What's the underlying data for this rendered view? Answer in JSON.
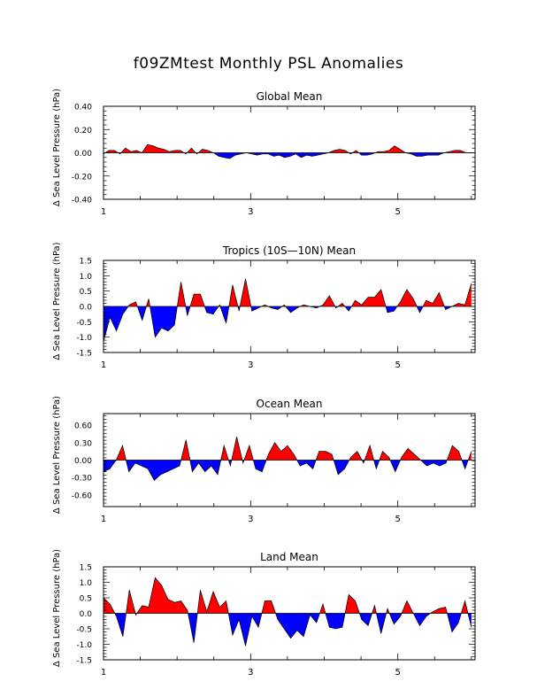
{
  "page_title": "f09ZMtest Monthly PSL Anomalies",
  "colors": {
    "positive": "#ff0000",
    "negative": "#0000ff",
    "axis": "#000000"
  },
  "chart_data": [
    {
      "type": "area",
      "title": "Global Mean",
      "ylabel": "Δ Sea Level Pressure (hPa)",
      "xlabel": "",
      "xlim": [
        1,
        6.05
      ],
      "ylim": [
        -0.4,
        0.4
      ],
      "xticks": [
        1,
        3,
        5
      ],
      "xtick_labels": [
        "1",
        "3",
        "5"
      ],
      "yticks": [
        -0.4,
        -0.2,
        0.0,
        0.2,
        0.4
      ],
      "ytick_labels": [
        "-0.40",
        "-0.20",
        "0.00",
        "0.20",
        "0.40"
      ],
      "values": [
        -0.01,
        0.02,
        0.02,
        -0.01,
        0.04,
        0.01,
        0.02,
        0.0,
        0.07,
        0.06,
        0.04,
        0.03,
        0.01,
        0.02,
        0.02,
        -0.01,
        0.04,
        -0.01,
        0.03,
        0.02,
        0.0,
        -0.03,
        -0.04,
        -0.05,
        -0.02,
        -0.01,
        0.0,
        -0.01,
        -0.02,
        -0.01,
        -0.01,
        -0.03,
        -0.02,
        -0.04,
        -0.03,
        -0.01,
        -0.04,
        -0.02,
        -0.03,
        -0.02,
        -0.01,
        0.0,
        0.02,
        0.03,
        0.02,
        -0.01,
        0.02,
        -0.02,
        -0.02,
        -0.01,
        0.01,
        0.01,
        0.02,
        0.06,
        0.03,
        0.0,
        -0.01,
        -0.03,
        -0.03,
        -0.02,
        -0.02,
        -0.02,
        0.0,
        0.01,
        0.02,
        0.02,
        0.0,
        0.0
      ]
    },
    {
      "type": "area",
      "title": "Tropics (10S—10N) Mean",
      "ylabel": "Δ Sea Level Pressure (hPa)",
      "xlabel": "",
      "xlim": [
        1,
        6.05
      ],
      "ylim": [
        -1.5,
        1.5
      ],
      "xticks": [
        1,
        3,
        5
      ],
      "xtick_labels": [
        "1",
        "3",
        "5"
      ],
      "yticks": [
        -1.5,
        -1.0,
        -0.5,
        0.0,
        0.5,
        1.0,
        1.5
      ],
      "ytick_labels": [
        "-1.5",
        "-1.0",
        "-0.5",
        "0.0",
        "0.5",
        "1.0",
        "1.5"
      ],
      "values": [
        -1.15,
        -0.35,
        -0.8,
        -0.25,
        0.05,
        0.15,
        -0.45,
        0.25,
        -1.0,
        -0.7,
        -0.8,
        -0.6,
        0.8,
        -0.3,
        0.4,
        0.4,
        -0.2,
        -0.25,
        0.05,
        -0.55,
        0.7,
        -0.15,
        0.9,
        -0.15,
        -0.05,
        0.05,
        -0.05,
        -0.1,
        0.05,
        -0.2,
        -0.05,
        0.05,
        0.0,
        -0.05,
        0.05,
        0.35,
        -0.05,
        0.1,
        -0.15,
        0.2,
        0.05,
        0.3,
        0.3,
        0.55,
        -0.2,
        -0.15,
        0.15,
        0.55,
        0.25,
        -0.2,
        0.2,
        0.1,
        0.45,
        -0.1,
        0.0,
        0.1,
        0.05,
        0.75
      ]
    },
    {
      "type": "area",
      "title": "Ocean Mean",
      "ylabel": "Δ Sea Level Pressure (hPa)",
      "xlabel": "",
      "xlim": [
        1,
        6.05
      ],
      "ylim": [
        -0.8,
        0.8
      ],
      "xticks": [
        1,
        3,
        5
      ],
      "xtick_labels": [
        "1",
        "3",
        "5"
      ],
      "yticks": [
        -0.6,
        -0.3,
        0.0,
        0.3,
        0.6
      ],
      "ytick_labels": [
        "-0.60",
        "-0.30",
        "0.00",
        "0.30",
        "0.60"
      ],
      "values": [
        -0.2,
        -0.15,
        0.0,
        0.25,
        -0.2,
        -0.05,
        -0.1,
        -0.15,
        -0.35,
        -0.25,
        -0.2,
        -0.15,
        -0.1,
        0.35,
        -0.2,
        -0.05,
        -0.2,
        -0.1,
        -0.25,
        0.25,
        -0.1,
        0.4,
        -0.05,
        0.25,
        -0.15,
        -0.2,
        0.1,
        0.3,
        0.15,
        0.25,
        0.1,
        -0.1,
        -0.05,
        -0.15,
        0.15,
        0.15,
        0.1,
        -0.25,
        -0.15,
        0.05,
        0.15,
        -0.05,
        0.25,
        -0.15,
        0.15,
        0.05,
        -0.2,
        0.05,
        0.2,
        0.1,
        0.0,
        -0.1,
        -0.05,
        -0.1,
        -0.05,
        0.25,
        0.15,
        -0.15,
        0.15
      ]
    },
    {
      "type": "area",
      "title": "Land Mean",
      "ylabel": "Δ Sea Level Pressure (hPa)",
      "xlabel": "",
      "xlim": [
        1,
        6.05
      ],
      "ylim": [
        -1.5,
        1.5
      ],
      "xticks": [
        1,
        3,
        5
      ],
      "xtick_labels": [
        "1",
        "3",
        "5"
      ],
      "yticks": [
        -1.5,
        -1.0,
        -0.5,
        0.0,
        0.5,
        1.0,
        1.5
      ],
      "ytick_labels": [
        "-1.5",
        "-1.0",
        "-0.5",
        "0.0",
        "0.5",
        "1.0",
        "1.5"
      ],
      "values": [
        0.5,
        0.3,
        -0.1,
        -0.75,
        0.75,
        -0.05,
        0.25,
        0.2,
        1.15,
        0.9,
        0.45,
        0.35,
        0.4,
        0.1,
        -0.95,
        0.75,
        0.05,
        0.7,
        0.2,
        0.4,
        -0.7,
        -0.2,
        -1.05,
        -0.1,
        -0.45,
        0.4,
        0.4,
        -0.2,
        -0.5,
        -0.8,
        -0.55,
        -0.75,
        -0.05,
        -0.3,
        0.3,
        -0.45,
        -0.5,
        -0.45,
        0.6,
        0.4,
        -0.2,
        -0.4,
        0.25,
        -0.65,
        0.15,
        -0.35,
        -0.1,
        0.4,
        0.0,
        -0.4,
        -0.1,
        0.05,
        0.15,
        0.2,
        -0.6,
        -0.3,
        0.4,
        -0.45
      ]
    }
  ]
}
